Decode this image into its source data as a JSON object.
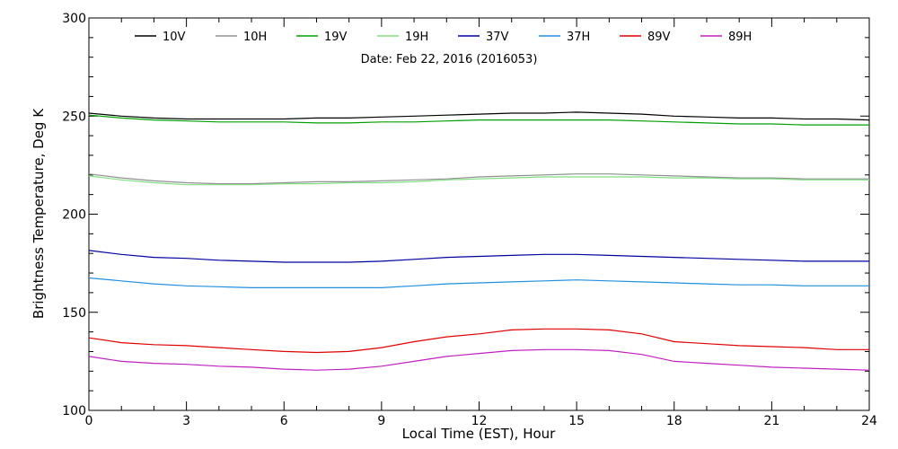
{
  "chart_data": {
    "type": "line",
    "title": "",
    "annotation": "Date: Feb 22, 2016 (2016053)",
    "xlabel": "Local Time (EST), Hour",
    "ylabel": "Brightness Temperature, Deg K",
    "xlim": [
      0,
      24
    ],
    "ylim": [
      100,
      300
    ],
    "xticks": [
      0,
      3,
      6,
      9,
      12,
      15,
      18,
      21,
      24
    ],
    "yticks": [
      100,
      150,
      200,
      250,
      300
    ],
    "grid": false,
    "legend_placement": "top",
    "x": [
      0,
      1,
      2,
      3,
      4,
      5,
      6,
      7,
      8,
      9,
      10,
      11,
      12,
      13,
      14,
      15,
      16,
      17,
      18,
      19,
      20,
      21,
      22,
      23,
      24
    ],
    "series": [
      {
        "name": "10V",
        "color": "#000000",
        "values": [
          251.5,
          250,
          249,
          248.5,
          248.5,
          248.5,
          248.5,
          249,
          249,
          249.5,
          250,
          250.5,
          251,
          251.5,
          251.5,
          252,
          251.5,
          251,
          250,
          249.5,
          249,
          249,
          248.5,
          248.5,
          248
        ]
      },
      {
        "name": "10H",
        "color": "#909090",
        "values": [
          220.5,
          218.5,
          217,
          216,
          215.5,
          215.5,
          216,
          216.5,
          216.5,
          217,
          217.5,
          218,
          219,
          219.5,
          220,
          220.5,
          220.5,
          220,
          219.5,
          219,
          218.5,
          218.5,
          218,
          218,
          218
        ]
      },
      {
        "name": "19V",
        "color": "#00a000",
        "values": [
          250.5,
          249,
          248,
          247.5,
          247,
          247,
          247,
          246.5,
          246.5,
          247,
          247,
          247.5,
          248,
          248,
          248,
          248,
          248,
          247.5,
          247,
          246.5,
          246,
          246,
          245.5,
          245.5,
          245.5
        ]
      },
      {
        "name": "19H",
        "color": "#80e080",
        "values": [
          219.5,
          217.5,
          216,
          215,
          215,
          215,
          215.5,
          215.5,
          216,
          216,
          216.5,
          217.5,
          218,
          218.5,
          219,
          219,
          219,
          219,
          218.5,
          218.5,
          218,
          218,
          217.5,
          217.5,
          217.5
        ]
      },
      {
        "name": "37V",
        "color": "#0000a0",
        "values": [
          181.5,
          179.5,
          178,
          177.5,
          176.5,
          176,
          175.5,
          175.5,
          175.5,
          176,
          177,
          178,
          178.5,
          179,
          179.5,
          179.5,
          179,
          178.5,
          178,
          177.5,
          177,
          176.5,
          176,
          176,
          176
        ]
      },
      {
        "name": "37H",
        "color": "#2090e0",
        "values": [
          167.5,
          166,
          164.5,
          163.5,
          163,
          162.5,
          162.5,
          162.5,
          162.5,
          162.5,
          163.5,
          164.5,
          165,
          165.5,
          166,
          166.5,
          166,
          165.5,
          165,
          164.5,
          164,
          164,
          163.5,
          163.5,
          163.5
        ]
      },
      {
        "name": "89V",
        "color": "#e00000",
        "values": [
          137,
          134.5,
          133.5,
          133,
          132,
          131,
          130,
          129.5,
          130,
          132,
          135,
          137.5,
          139,
          141,
          141.5,
          141.5,
          141,
          139,
          135,
          134,
          133,
          132.5,
          132,
          131,
          131
        ]
      },
      {
        "name": "89H",
        "color": "#c020c0",
        "values": [
          127.5,
          125,
          124,
          123.5,
          122.5,
          122,
          121,
          120.5,
          121,
          122.5,
          125,
          127.5,
          129,
          130.5,
          131,
          131,
          130.5,
          128.5,
          125,
          124,
          123,
          122,
          121.5,
          121,
          120.5
        ]
      }
    ]
  }
}
